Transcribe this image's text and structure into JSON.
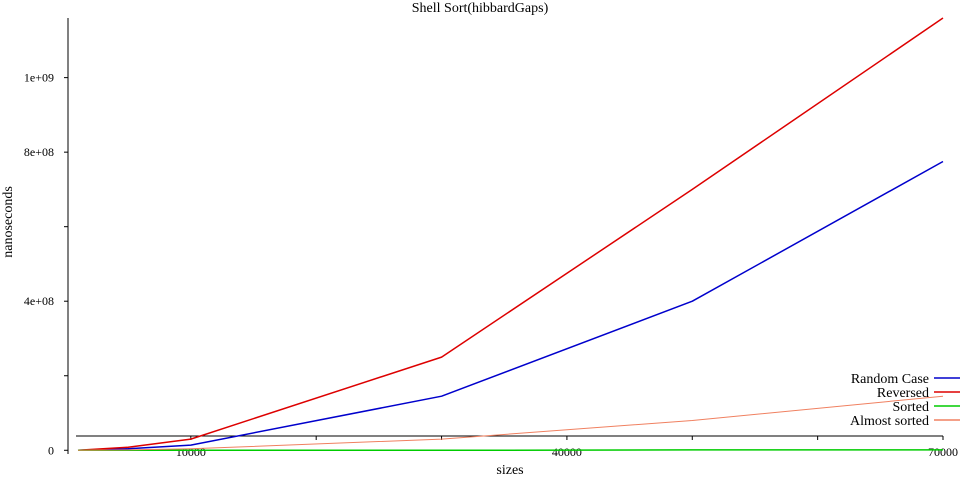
{
  "chart_data": {
    "type": "line",
    "title": "Shell Sort(hibbardGaps)",
    "xlabel": "sizes",
    "ylabel": "nanoseconds",
    "xlim": [
      1000,
      70000
    ],
    "ylim": [
      -10000000,
      1160000000
    ],
    "x_ticks": [
      {
        "value": 10000,
        "label": "10000"
      },
      {
        "value": 20000,
        "label": ""
      },
      {
        "value": 30000,
        "label": ""
      },
      {
        "value": 40000,
        "label": "40000"
      },
      {
        "value": 50000,
        "label": ""
      },
      {
        "value": 60000,
        "label": ""
      },
      {
        "value": 70000,
        "label": "70000"
      }
    ],
    "y_ticks": [
      {
        "value": 0,
        "label": "0"
      },
      {
        "value": 200000000,
        "label": ""
      },
      {
        "value": 400000000,
        "label": "4e+08"
      },
      {
        "value": 600000000,
        "label": ""
      },
      {
        "value": 800000000,
        "label": "8e+08"
      },
      {
        "value": 1000000000,
        "label": "1e+09"
      }
    ],
    "grid": false,
    "legend_position": "bottom-right",
    "x": [
      1000,
      5000,
      10000,
      30000,
      50000,
      70000
    ],
    "series": [
      {
        "name": "Random Case",
        "color": "#0000cc",
        "values": [
          0,
          4000000,
          14000000,
          145000000,
          400000000,
          775000000
        ]
      },
      {
        "name": "Reversed",
        "color": "#dd0000",
        "values": [
          0,
          8000000,
          30000000,
          250000000,
          700000000,
          1160000000
        ]
      },
      {
        "name": "Sorted",
        "color": "#00cc00",
        "values": [
          0,
          0,
          0,
          0,
          1000000,
          1000000
        ]
      },
      {
        "name": "Almost sorted",
        "color": "#f08060",
        "values": [
          0,
          1000000,
          4000000,
          30000000,
          80000000,
          145000000
        ]
      }
    ]
  }
}
